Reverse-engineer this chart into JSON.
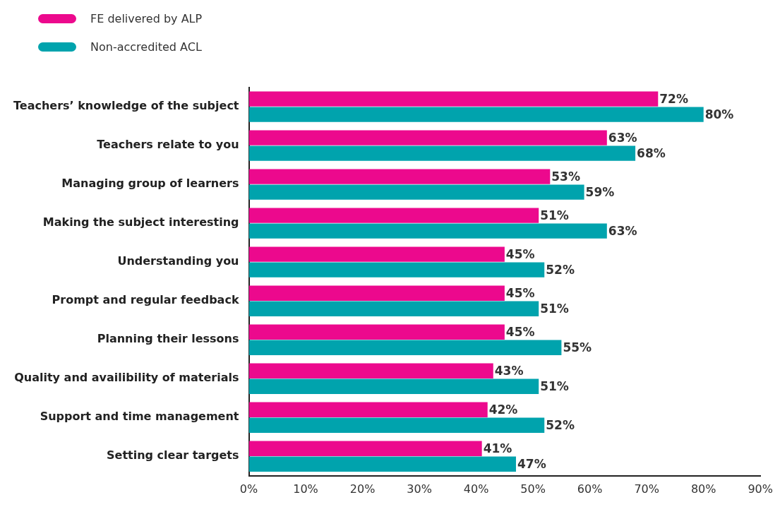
{
  "chart_data": {
    "type": "bar",
    "orientation": "horizontal",
    "categories": [
      "Teachers’ knowledge of the subject",
      "Teachers relate to you",
      "Managing group of learners",
      "Making the subject interesting",
      "Understanding you",
      "Prompt and regular feedback",
      "Planning their lessons",
      "Quality and availibility of materials",
      "Support and time management",
      "Setting clear targets"
    ],
    "series": [
      {
        "name": "FE delivered by ALP",
        "color": "#ec098d",
        "values": [
          72,
          63,
          53,
          51,
          45,
          45,
          45,
          43,
          42,
          41
        ],
        "value_labels": [
          "72%",
          "63%",
          "53%",
          "51%",
          "45%",
          "45%",
          "45%",
          "43%",
          "42%",
          "41%"
        ]
      },
      {
        "name": "Non-accredited ACL",
        "color": "#00a3ad",
        "values": [
          80,
          68,
          59,
          63,
          52,
          51,
          55,
          51,
          52,
          47
        ],
        "value_labels": [
          "80%",
          "68%",
          "59%",
          "63%",
          "52%",
          "51%",
          "55%",
          "51%",
          "52%",
          "47%"
        ]
      }
    ],
    "xlim": [
      0,
      90
    ],
    "xticks": [
      {
        "value": 0,
        "label": "0%"
      },
      {
        "value": 10,
        "label": "10%"
      },
      {
        "value": 20,
        "label": "20%"
      },
      {
        "value": 30,
        "label": "30%"
      },
      {
        "value": 40,
        "label": "40%"
      },
      {
        "value": 50,
        "label": "50%"
      },
      {
        "value": 60,
        "label": "60%"
      },
      {
        "value": 70,
        "label": "70%"
      },
      {
        "value": 80,
        "label": "80%"
      },
      {
        "value": 90,
        "label": "90%"
      }
    ],
    "grid": false,
    "legend": "top left"
  }
}
